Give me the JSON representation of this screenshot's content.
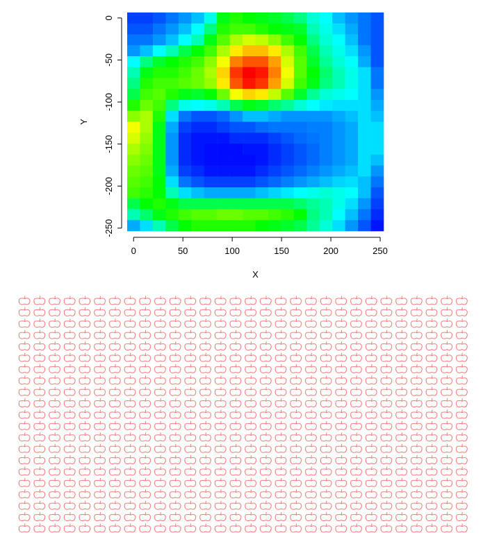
{
  "chart_data": {
    "type": "heatmap",
    "xlabel": "X",
    "ylabel": "Y",
    "x": [
      0,
      13,
      26,
      39,
      52,
      65,
      78,
      91,
      104,
      117,
      130,
      143,
      156,
      169,
      182,
      195,
      208,
      221,
      234,
      247
    ],
    "y": [
      0,
      -13,
      -26,
      -39,
      -52,
      -65,
      -78,
      -91,
      -104,
      -117,
      -130,
      -143,
      -156,
      -169,
      -182,
      -195,
      -208,
      -221,
      -234,
      -247
    ],
    "z": [
      [
        10,
        10,
        12,
        15,
        18,
        22,
        30,
        50,
        55,
        52,
        50,
        48,
        45,
        40,
        32,
        28,
        22,
        18,
        15,
        12
      ],
      [
        12,
        12,
        15,
        18,
        22,
        28,
        40,
        55,
        58,
        58,
        55,
        52,
        50,
        48,
        35,
        30,
        25,
        20,
        15,
        12
      ],
      [
        15,
        15,
        18,
        22,
        28,
        35,
        50,
        60,
        68,
        72,
        70,
        65,
        58,
        52,
        40,
        32,
        28,
        22,
        15,
        12
      ],
      [
        18,
        22,
        28,
        35,
        45,
        52,
        58,
        68,
        78,
        82,
        82,
        78,
        68,
        58,
        45,
        35,
        30,
        25,
        18,
        12
      ],
      [
        28,
        40,
        48,
        52,
        55,
        58,
        65,
        75,
        88,
        92,
        92,
        85,
        72,
        60,
        48,
        38,
        32,
        28,
        20,
        12
      ],
      [
        35,
        50,
        55,
        55,
        58,
        62,
        68,
        80,
        95,
        100,
        98,
        88,
        75,
        60,
        52,
        42,
        35,
        30,
        25,
        15
      ],
      [
        40,
        55,
        58,
        58,
        60,
        62,
        66,
        78,
        92,
        98,
        95,
        85,
        72,
        58,
        50,
        40,
        35,
        30,
        25,
        15
      ],
      [
        45,
        58,
        60,
        55,
        50,
        48,
        52,
        62,
        75,
        80,
        78,
        70,
        60,
        48,
        38,
        32,
        30,
        28,
        25,
        18
      ],
      [
        55,
        62,
        58,
        40,
        30,
        28,
        30,
        35,
        45,
        50,
        48,
        42,
        38,
        32,
        28,
        26,
        25,
        25,
        25,
        20
      ],
      [
        65,
        68,
        55,
        25,
        15,
        12,
        12,
        14,
        18,
        22,
        22,
        20,
        18,
        18,
        18,
        18,
        20,
        22,
        25,
        22
      ],
      [
        75,
        68,
        50,
        20,
        10,
        8,
        8,
        10,
        12,
        12,
        14,
        15,
        15,
        15,
        16,
        16,
        18,
        20,
        25,
        25
      ],
      [
        72,
        66,
        50,
        18,
        8,
        6,
        6,
        6,
        8,
        8,
        8,
        10,
        12,
        14,
        15,
        16,
        18,
        20,
        25,
        25
      ],
      [
        68,
        64,
        50,
        18,
        8,
        6,
        5,
        5,
        5,
        6,
        6,
        8,
        10,
        12,
        14,
        16,
        18,
        20,
        25,
        25
      ],
      [
        65,
        62,
        50,
        18,
        8,
        6,
        5,
        5,
        5,
        5,
        6,
        8,
        10,
        12,
        14,
        16,
        18,
        20,
        25,
        22
      ],
      [
        62,
        60,
        50,
        20,
        10,
        8,
        6,
        6,
        6,
        6,
        8,
        10,
        12,
        14,
        16,
        18,
        20,
        22,
        25,
        18
      ],
      [
        60,
        58,
        52,
        25,
        15,
        12,
        10,
        10,
        10,
        10,
        12,
        14,
        16,
        18,
        20,
        22,
        24,
        25,
        22,
        15
      ],
      [
        58,
        56,
        52,
        35,
        25,
        22,
        20,
        20,
        20,
        20,
        22,
        24,
        26,
        28,
        30,
        32,
        30,
        28,
        22,
        12
      ],
      [
        45,
        52,
        55,
        50,
        45,
        45,
        45,
        45,
        45,
        45,
        45,
        45,
        45,
        42,
        38,
        35,
        30,
        25,
        18,
        10
      ],
      [
        35,
        42,
        50,
        55,
        58,
        60,
        60,
        62,
        62,
        60,
        60,
        58,
        56,
        52,
        40,
        35,
        28,
        22,
        15,
        8
      ],
      [
        20,
        25,
        35,
        45,
        52,
        55,
        55,
        55,
        55,
        55,
        52,
        50,
        48,
        45,
        38,
        32,
        25,
        18,
        12,
        6
      ]
    ],
    "zlim": [
      0,
      100
    ],
    "colormap": "rainbow",
    "xlim": [
      -6.5,
      253.5
    ],
    "xticks": [
      0,
      50,
      100,
      150,
      200,
      250
    ],
    "ylim": [
      -253.5,
      6.5
    ],
    "yticks": [
      0,
      -50,
      -100,
      -150,
      -200,
      -250
    ]
  }
}
